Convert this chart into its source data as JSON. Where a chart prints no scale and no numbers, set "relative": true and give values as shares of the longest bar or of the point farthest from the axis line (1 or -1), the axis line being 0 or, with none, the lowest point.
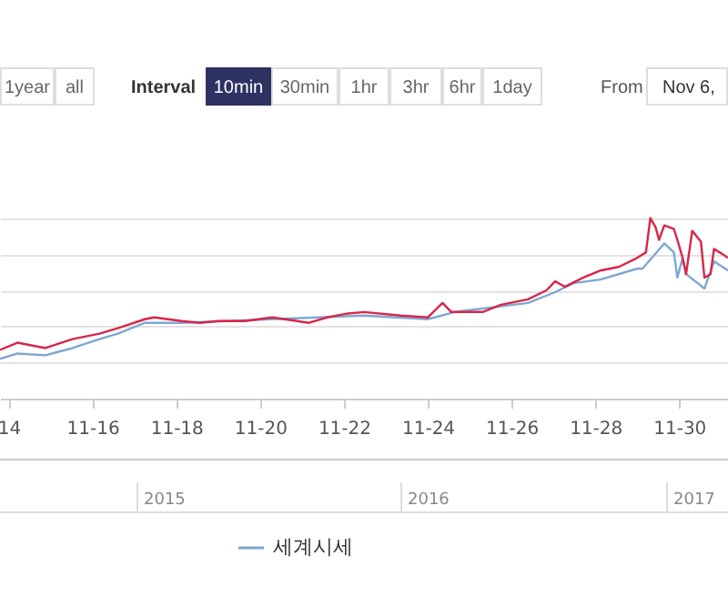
{
  "chart_data": {
    "type": "line",
    "relative": true,
    "grid": "y",
    "legend": "bottom",
    "xlim": [
      "--11-13T19:00",
      "--12-01T04:00"
    ],
    "xticks": [
      {
        "value": "--11-14",
        "label": "14"
      },
      {
        "value": "--11-16",
        "label": "11-16"
      },
      {
        "value": "--11-18",
        "label": "11-18"
      },
      {
        "value": "--11-20",
        "label": "11-20"
      },
      {
        "value": "--11-22",
        "label": "11-22"
      },
      {
        "value": "--11-24",
        "label": "11-24"
      },
      {
        "value": "--11-26",
        "label": "11-26"
      },
      {
        "value": "--11-28",
        "label": "11-28"
      },
      {
        "value": "--11-30",
        "label": "11-30"
      }
    ],
    "annotations": [
      "1year",
      "all",
      "Interval",
      "10min",
      "30min",
      "1hr",
      "3hr",
      "6hr",
      "1day",
      "From",
      "Nov 6,",
      "2015",
      "2016",
      "2017"
    ],
    "series": [
      {
        "name": "세계시세",
        "color": "#7ea7d2",
        "x": [
          "--11-13T19:00",
          "--11-14T05:00",
          "--11-14T21:00",
          "--11-15T12:30",
          "--11-16T04:00",
          "--11-16T14:30",
          "--11-17T06:00",
          "--11-18T03:00",
          "--11-22T11:30",
          "--11-24T00:00",
          "--11-24T15:30",
          "--11-26T09:30",
          "--11-27T01:00",
          "--11-27T11:30",
          "--11-28T03:00",
          "--11-29T00:00",
          "--11-29T03:00",
          "--11-29T15:30",
          "--11-29T21:00",
          "--11-29T23:00",
          "--11-30T02:00",
          "--11-30T04:00",
          "--11-30T14:30",
          "--11-30T20:00",
          "--12-01T04:00"
        ],
        "values": [
          0.22,
          0.25,
          0.24,
          0.28,
          0.33,
          0.36,
          0.42,
          0.42,
          0.46,
          0.44,
          0.48,
          0.53,
          0.59,
          0.64,
          0.66,
          0.72,
          0.72,
          0.86,
          0.81,
          0.67,
          0.78,
          0.69,
          0.61,
          0.76,
          0.71
        ]
      },
      {
        "color": "#d8264a",
        "x": [
          "--11-13T19:00",
          "--11-14T05:00",
          "--11-14T21:00",
          "--11-15T12:30",
          "--11-16T04:00",
          "--11-16T14:30",
          "--11-17T06:00",
          "--11-17T11:30",
          "--11-18T03:00",
          "--11-18T13:30",
          "--11-19T00:00",
          "--11-19T15:30",
          "--11-20T07:00",
          "--11-21T04:00",
          "--11-21T14:30",
          "--11-22T01:00",
          "--11-22T11:30",
          "--11-23T08:30",
          "--11-24T00:00",
          "--11-24T08:30",
          "--11-24T13:30",
          "--11-25T07:30",
          "--11-25T18:00",
          "--11-26T09:30",
          "--11-26T20:00",
          "--11-27T01:00",
          "--11-27T06:30",
          "--11-27T17:00",
          "--11-28T03:00",
          "--11-28T13:30",
          "--11-29T00:00",
          "--11-29T05:00",
          "--11-29T07:30",
          "--11-29T10:30",
          "--11-29T12:30",
          "--11-29T15:30",
          "--11-29T21:00",
          "--11-29T23:00",
          "--11-30T02:00",
          "--11-30T04:00",
          "--11-30T07:30",
          "--11-30T12:30",
          "--11-30T14:30",
          "--11-30T18:00",
          "--11-30T20:00",
          "--12-01T01:00",
          "--12-01T04:00"
        ],
        "values": [
          0.27,
          0.31,
          0.28,
          0.33,
          0.36,
          0.39,
          0.44,
          0.45,
          0.43,
          0.42,
          0.43,
          0.43,
          0.45,
          0.42,
          0.45,
          0.47,
          0.48,
          0.46,
          0.45,
          0.53,
          0.48,
          0.48,
          0.52,
          0.55,
          0.6,
          0.65,
          0.62,
          0.67,
          0.71,
          0.73,
          0.78,
          0.81,
          1.0,
          0.95,
          0.88,
          0.96,
          0.94,
          0.88,
          0.78,
          0.69,
          0.93,
          0.87,
          0.67,
          0.69,
          0.83,
          0.8,
          0.78
        ]
      }
    ]
  }
}
